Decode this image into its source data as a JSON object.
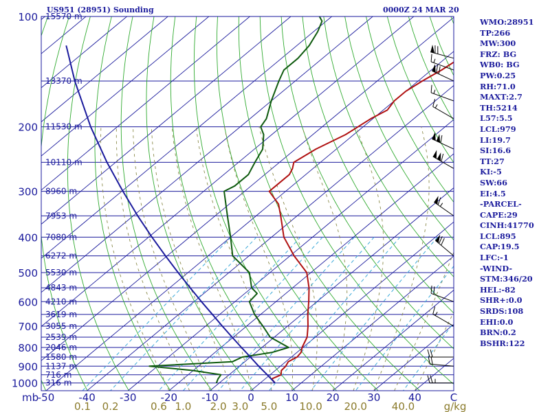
{
  "header": {
    "station_title": "US951 (28951) Sounding",
    "time_label": "0000Z 24 MAR 20"
  },
  "indices": [
    "WMO:28951",
    "TP:266",
    "MW:300",
    "FRZ: BG",
    "WB0: BG",
    "PW:0.25",
    "RH:71.0",
    "MAXT:2.7",
    "TH:5214",
    "L57:5.5",
    "LCL:979",
    "LI:19.7",
    "SI:16.6",
    "TT:27",
    "KI:-5",
    "SW:66",
    "EI:4.5",
    "-PARCEL-",
    "CAPE:29",
    "CINH:41770",
    "LCL:895",
    "CAP:19.5",
    "LFC:-1",
    "-WIND-",
    "STM:346/20",
    "HEL:-82",
    "SHR+:0.0",
    "SRDS:108",
    "EHI:0.0",
    "BRN:0.2",
    "BSHR:122"
  ],
  "colors": {
    "frame": "#1a1a9c",
    "isobar": "#1a1a9c",
    "isotherm": "#1a1a9c",
    "dry_adiabat": "#2faa2f",
    "moist_adiabat": "#8a8a4a",
    "mixing_ratio": "#3aa8d8",
    "temperature": "#b01010",
    "dewpoint": "#0e5a0e",
    "parcel": "#1a1a9c",
    "height_label": "#1a1a9c",
    "wind": "#000000",
    "mixing_label": "#8a7a2a"
  },
  "chart_data": {
    "type": "line",
    "pressure_levels": [
      {
        "p": 100,
        "label": "100",
        "height": "15570 m"
      },
      {
        "p": 150,
        "label": "",
        "height": "13370 m"
      },
      {
        "p": 200,
        "label": "200",
        "height": "11530 m"
      },
      {
        "p": 250,
        "label": "",
        "height": "10110 m"
      },
      {
        "p": 300,
        "label": "300",
        "height": "8960 m"
      },
      {
        "p": 350,
        "label": "",
        "height": "7953 m"
      },
      {
        "p": 400,
        "label": "400",
        "height": "7080 m"
      },
      {
        "p": 450,
        "label": "",
        "height": "6272 m"
      },
      {
        "p": 500,
        "label": "500",
        "height": "5530 m"
      },
      {
        "p": 550,
        "label": "",
        "height": "4843 m"
      },
      {
        "p": 600,
        "label": "600",
        "height": "4210 m"
      },
      {
        "p": 650,
        "label": "",
        "height": "3619 m"
      },
      {
        "p": 700,
        "label": "700",
        "height": "3055 m"
      },
      {
        "p": 750,
        "label": "",
        "height": "2539 m"
      },
      {
        "p": 800,
        "label": "800",
        "height": "2046 m"
      },
      {
        "p": 850,
        "label": "",
        "height": "1580 m"
      },
      {
        "p": 900,
        "label": "900",
        "height": "1137 m"
      },
      {
        "p": 950,
        "label": "",
        "height": "716 m"
      },
      {
        "p": 1000,
        "label": "1000",
        "height": "316 m"
      }
    ],
    "x_axis_label": "mb",
    "temperature_ticks": [
      {
        "t": -50,
        "label": "-50"
      },
      {
        "t": -40,
        "label": "-40"
      },
      {
        "t": -30,
        "label": "-30"
      },
      {
        "t": -20,
        "label": "-20"
      },
      {
        "t": -10,
        "label": "-10"
      },
      {
        "t": 0,
        "label": "0"
      },
      {
        "t": 10,
        "label": "10"
      },
      {
        "t": 20,
        "label": "20"
      },
      {
        "t": 30,
        "label": "30"
      },
      {
        "t": 40,
        "label": "40"
      }
    ],
    "temperature_unit": "C",
    "mixing_ratio_ticks": [
      {
        "w": 0.1,
        "label": "0.1"
      },
      {
        "w": 0.2,
        "label": "0.2"
      },
      {
        "w": 0.6,
        "label": "0.6"
      },
      {
        "w": 1.0,
        "label": "1.0"
      },
      {
        "w": 2.0,
        "label": "2.0"
      },
      {
        "w": 3.0,
        "label": "3.0"
      },
      {
        "w": 5.0,
        "label": "5.0"
      },
      {
        "w": 10.0,
        "label": "10.0"
      },
      {
        "w": 20.0,
        "label": "20.0"
      },
      {
        "w": 40.0,
        "label": "40.0"
      }
    ],
    "mixing_ratio_unit": "g/kg",
    "axes": {
      "pressure_range": [
        1050,
        100
      ],
      "temperature_range_at_1050": [
        -50,
        50
      ],
      "skew": "skew-T log-p"
    },
    "series": [
      {
        "role": "temperature",
        "points": [
          [
            1000,
            3.6
          ],
          [
            975,
            1.6
          ],
          [
            950,
            2.7
          ],
          [
            925,
            1.5
          ],
          [
            900,
            1.3
          ],
          [
            875,
            0.6
          ],
          [
            850,
            1.4
          ],
          [
            825,
            1.0
          ],
          [
            800,
            -0.2
          ],
          [
            750,
            -2.0
          ],
          [
            700,
            -5.0
          ],
          [
            650,
            -8.5
          ],
          [
            600,
            -12.0
          ],
          [
            550,
            -16.0
          ],
          [
            500,
            -21.0
          ],
          [
            450,
            -29.0
          ],
          [
            400,
            -37.0
          ],
          [
            350,
            -44.0
          ],
          [
            325,
            -48.0
          ],
          [
            300,
            -54.0
          ],
          [
            290,
            -54.0
          ],
          [
            270,
            -54.0
          ],
          [
            260,
            -55.0
          ],
          [
            250,
            -56.5
          ],
          [
            230,
            -55.0
          ],
          [
            210,
            -52.0
          ],
          [
            190,
            -50.5
          ],
          [
            180,
            -49.0
          ],
          [
            170,
            -50.0
          ],
          [
            160,
            -50.0
          ],
          [
            150,
            -49.0
          ],
          [
            140,
            -47.5
          ],
          [
            130,
            -46.5
          ],
          [
            120,
            -45.0
          ],
          [
            110,
            -44.5
          ],
          [
            103,
            -45.0
          ],
          [
            100,
            -45.5
          ]
        ]
      },
      {
        "role": "dewpoint",
        "points": [
          [
            1000,
            -10.7
          ],
          [
            975,
            -11.5
          ],
          [
            950,
            -12.0
          ],
          [
            925,
            -20.0
          ],
          [
            900,
            -32.0
          ],
          [
            875,
            -13.0
          ],
          [
            850,
            -12.0
          ],
          [
            825,
            -6.0
          ],
          [
            800,
            -3.5
          ],
          [
            750,
            -11.0
          ],
          [
            700,
            -16.0
          ],
          [
            650,
            -21.5
          ],
          [
            600,
            -26.5
          ],
          [
            570,
            -27.0
          ],
          [
            550,
            -30.0
          ],
          [
            500,
            -35.0
          ],
          [
            450,
            -44.0
          ],
          [
            400,
            -50.0
          ],
          [
            350,
            -57.0
          ],
          [
            300,
            -65.0
          ],
          [
            290,
            -64.0
          ],
          [
            270,
            -64.0
          ],
          [
            250,
            -66.0
          ],
          [
            230,
            -68.0
          ],
          [
            210,
            -72.0
          ],
          [
            200,
            -75.0
          ],
          [
            190,
            -76.0
          ],
          [
            170,
            -80.0
          ],
          [
            150,
            -84.0
          ],
          [
            140,
            -86.0
          ],
          [
            130,
            -86.0
          ],
          [
            120,
            -87.0
          ],
          [
            110,
            -89.0
          ],
          [
            103,
            -91.0
          ],
          [
            100,
            -93.0
          ]
        ]
      },
      {
        "role": "parcel",
        "points": [
          [
            1000,
            3.6
          ],
          [
            950,
            -0.7
          ],
          [
            900,
            -5.3
          ],
          [
            850,
            -10.0
          ],
          [
            800,
            -15.0
          ],
          [
            750,
            -20.3
          ],
          [
            700,
            -25.9
          ],
          [
            650,
            -31.8
          ],
          [
            600,
            -38.2
          ],
          [
            550,
            -45.0
          ],
          [
            500,
            -52.4
          ],
          [
            450,
            -60.4
          ],
          [
            400,
            -69.2
          ],
          [
            350,
            -78.9
          ],
          [
            300,
            -89.7
          ],
          [
            250,
            -102.1
          ],
          [
            200,
            -116.5
          ],
          [
            150,
            -133.8
          ],
          [
            120,
            -146.3
          ]
        ]
      }
    ],
    "wind_barbs": [
      {
        "p": 1000,
        "dir": 270,
        "spd": 25
      },
      {
        "p": 900,
        "dir": 275,
        "spd": 20
      },
      {
        "p": 850,
        "dir": 270,
        "spd": 20
      },
      {
        "p": 700,
        "dir": 300,
        "spd": 15
      },
      {
        "p": 600,
        "dir": 290,
        "spd": 20
      },
      {
        "p": 450,
        "dir": 310,
        "spd": 70
      },
      {
        "p": 350,
        "dir": 305,
        "spd": 65
      },
      {
        "p": 260,
        "dir": 300,
        "spd": 110
      },
      {
        "p": 230,
        "dir": 295,
        "spd": 110
      },
      {
        "p": 190,
        "dir": 300,
        "spd": 15
      },
      {
        "p": 170,
        "dir": 290,
        "spd": 15
      },
      {
        "p": 150,
        "dir": 295,
        "spd": 70
      },
      {
        "p": 140,
        "dir": 290,
        "spd": 15
      },
      {
        "p": 130,
        "dir": 285,
        "spd": 70
      }
    ]
  }
}
